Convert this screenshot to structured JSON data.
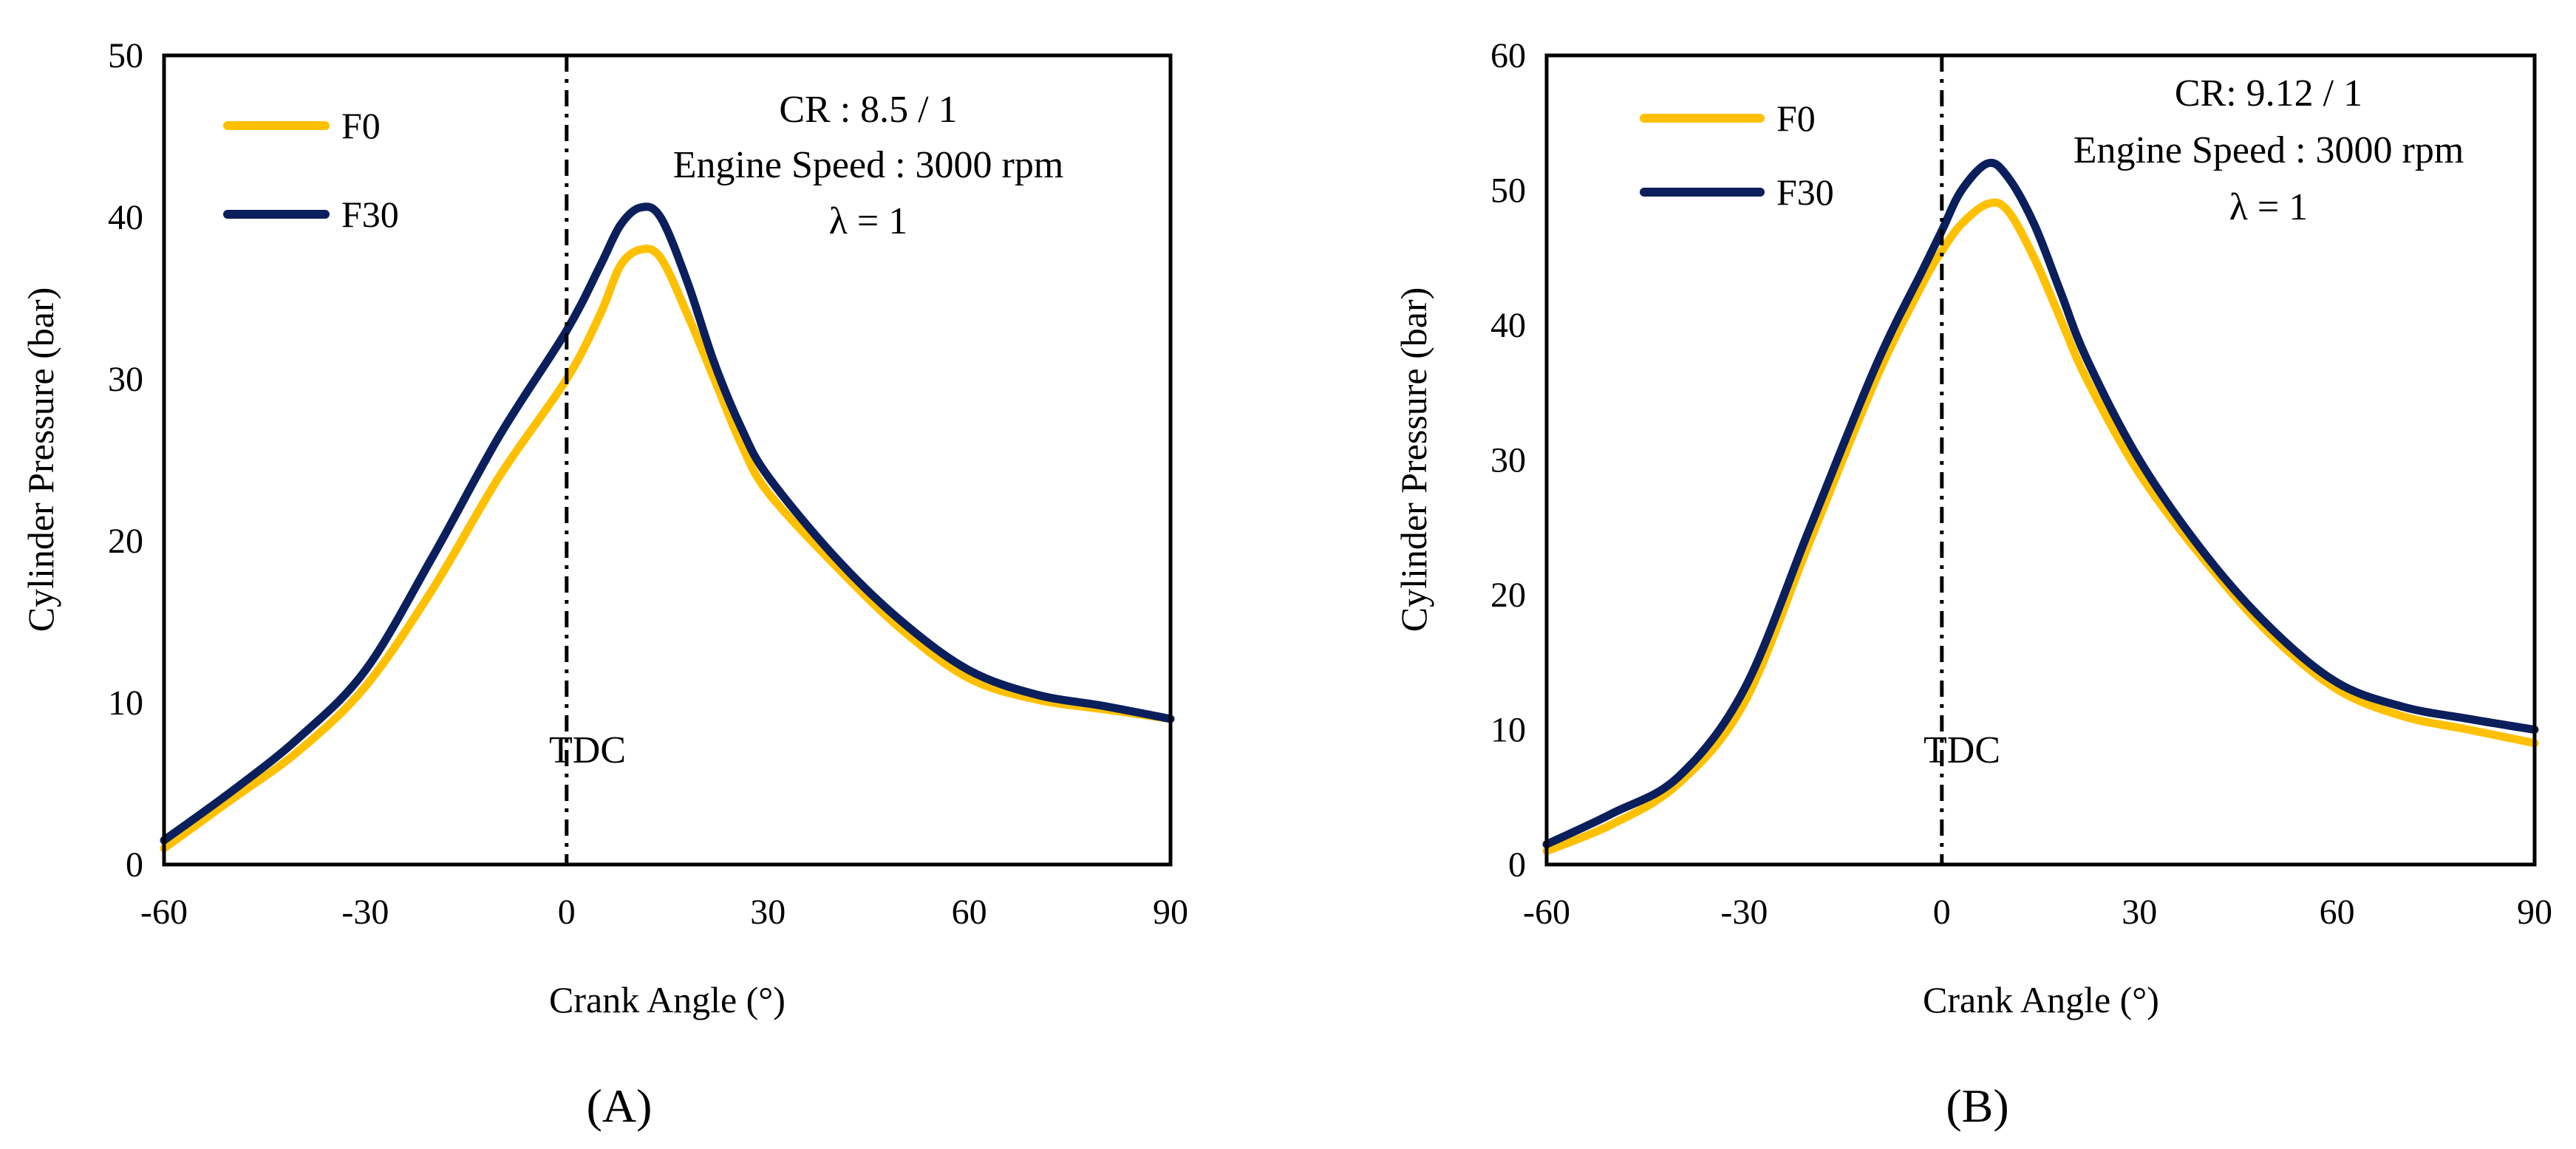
{
  "colors": {
    "F0": "#FFC000",
    "F30": "#0A1F5C",
    "axis": "#000000"
  },
  "chart_data": [
    {
      "type": "line",
      "panel_label": "(A)",
      "xlabel": "Crank Angle (°)",
      "ylabel": "Cylinder Pressure (bar)",
      "xlim": [
        -60,
        90
      ],
      "ylim": [
        0,
        50
      ],
      "xticks": [
        -60,
        -30,
        0,
        30,
        60,
        90
      ],
      "yticks": [
        0,
        10,
        20,
        30,
        40,
        50
      ],
      "tdc": {
        "x": 0,
        "label": "TDC"
      },
      "annotation": [
        "CR : 8.5 / 1",
        "Engine Speed : 3000 rpm",
        "λ = 1"
      ],
      "legend": [
        "F0",
        "F30"
      ],
      "series": [
        {
          "name": "F0",
          "color": "#FFC000",
          "x": [
            -60,
            -50,
            -40,
            -30,
            -20,
            -10,
            0,
            5,
            8,
            11,
            14,
            18,
            22,
            26,
            30,
            40,
            50,
            60,
            70,
            80,
            90
          ],
          "y": [
            1,
            4,
            7,
            11,
            17,
            24,
            30,
            34,
            37,
            38,
            37.5,
            34,
            30,
            26,
            23,
            18.5,
            14.5,
            11.5,
            10.2,
            9.6,
            9
          ]
        },
        {
          "name": "F30",
          "color": "#0A1F5C",
          "x": [
            -60,
            -50,
            -40,
            -30,
            -20,
            -10,
            0,
            5,
            8,
            11,
            14,
            18,
            22,
            26,
            30,
            40,
            50,
            60,
            70,
            80,
            90
          ],
          "y": [
            1.5,
            4.5,
            7.8,
            12,
            19,
            26.5,
            33,
            37,
            39.5,
            40.6,
            40,
            36,
            31,
            27,
            24,
            19,
            15,
            12,
            10.5,
            9.8,
            9
          ]
        }
      ]
    },
    {
      "type": "line",
      "panel_label": "(B)",
      "xlabel": "Crank Angle (°)",
      "ylabel": "Cylinder Pressure (bar)",
      "xlim": [
        -60,
        90
      ],
      "ylim": [
        0,
        60
      ],
      "xticks": [
        -60,
        -30,
        0,
        30,
        60,
        90
      ],
      "yticks": [
        0,
        10,
        20,
        30,
        40,
        50,
        60
      ],
      "tdc": {
        "x": 0,
        "label": "TDC"
      },
      "annotation": [
        "CR: 9.12 / 1",
        "Engine Speed : 3000 rpm",
        "λ = 1"
      ],
      "legend": [
        "F0",
        "F30"
      ],
      "series": [
        {
          "name": "F0",
          "color": "#FFC000",
          "x": [
            -60,
            -50,
            -40,
            -30,
            -20,
            -10,
            -3,
            0,
            3,
            7,
            10,
            14,
            18,
            22,
            30,
            40,
            50,
            60,
            70,
            80,
            90
          ],
          "y": [
            1,
            3,
            6,
            12,
            24,
            36,
            43,
            45.5,
            47.5,
            49,
            48.5,
            45,
            40.5,
            36,
            29,
            22.5,
            17,
            13,
            11,
            10,
            9
          ]
        },
        {
          "name": "F30",
          "color": "#0A1F5C",
          "x": [
            -60,
            -50,
            -40,
            -30,
            -20,
            -10,
            -3,
            0,
            3,
            7,
            10,
            14,
            18,
            22,
            30,
            40,
            50,
            60,
            70,
            80,
            90
          ],
          "y": [
            1.5,
            3.8,
            6.5,
            13,
            25,
            37,
            44,
            47,
            50,
            52,
            51,
            47.5,
            42.5,
            37.5,
            30,
            23,
            17.5,
            13.5,
            11.7,
            10.8,
            10
          ]
        }
      ]
    }
  ]
}
